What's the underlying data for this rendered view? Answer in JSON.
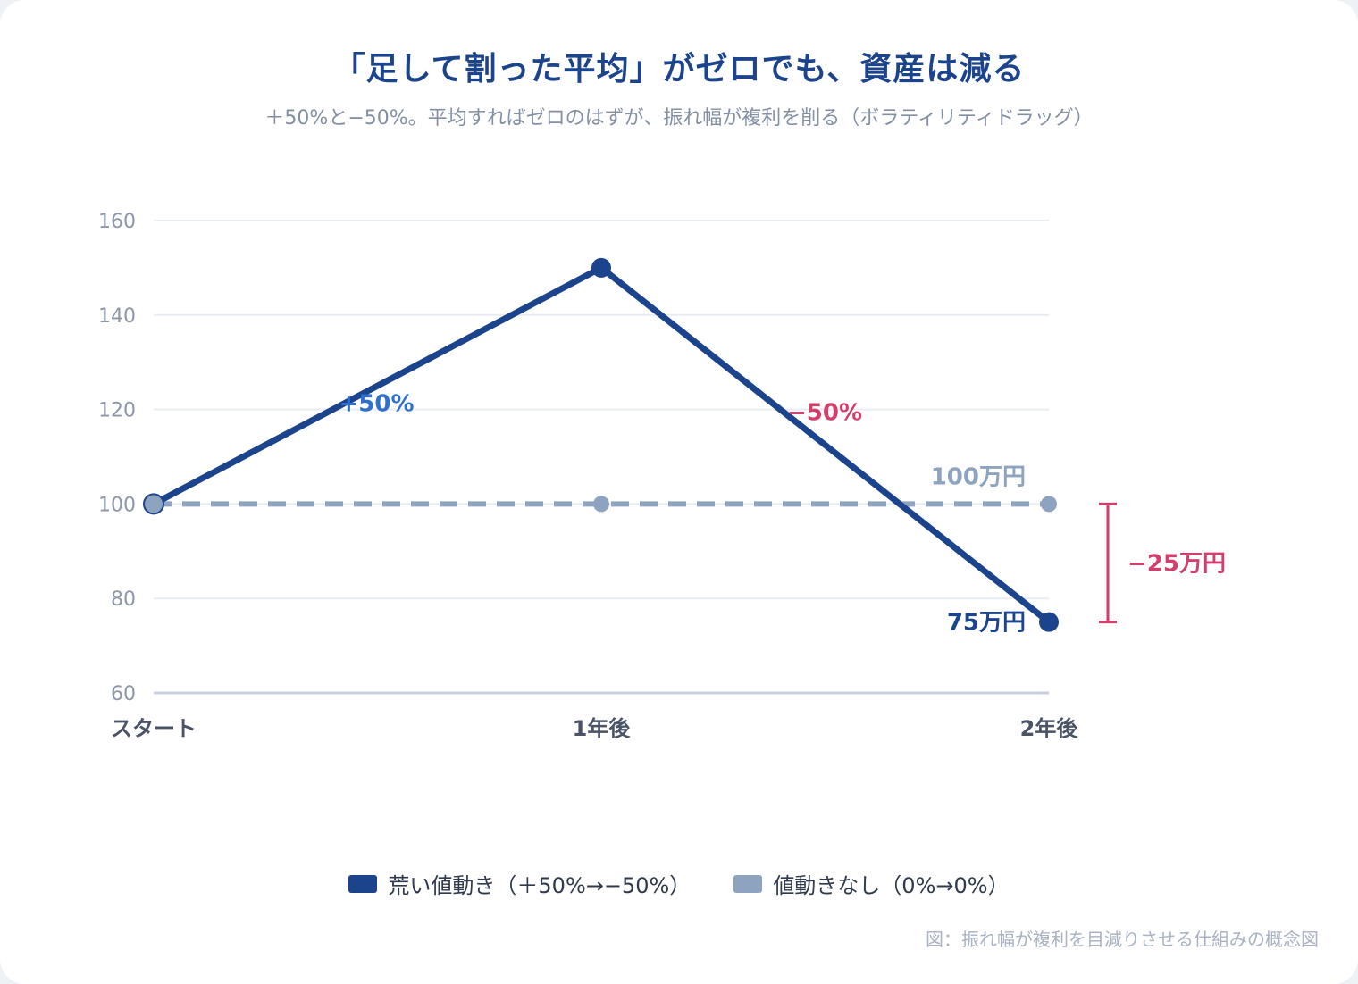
{
  "title": "「足して割った平均」がゼロでも、資産は減る",
  "subtitle": "＋50%と−50%。平均すればゼロのはずが、振れ幅が複利を削る（ボラティリティドラッグ）",
  "caption": "図：振れ幅が複利を目減りさせる仕組みの概念図",
  "colors": {
    "volatile": "#1c448c",
    "flat": "#8ea3c0",
    "up": "#2f6fd0",
    "down": "#d23f6b",
    "grid": "#e8ecf3",
    "axis": "#c9d1e1",
    "tick": "#8d97a8",
    "category": "#4a5466"
  },
  "chart_data": {
    "type": "line",
    "categories": [
      "スタート",
      "1年後",
      "2年後"
    ],
    "ylim": [
      60,
      160
    ],
    "yticks": [
      60,
      80,
      100,
      120,
      140,
      160
    ],
    "series": [
      {
        "name": "荒い値動き（＋50%→−50%）",
        "values": [
          100,
          150,
          75
        ],
        "style": "solid"
      },
      {
        "name": "値動きなし（0%→0%）",
        "values": [
          100,
          100,
          100
        ],
        "style": "dashed"
      }
    ],
    "annotations": {
      "up_label": "+50%",
      "down_label": "−50%",
      "flat_end_label": "100万円",
      "volatile_end_label": "75万円",
      "gap_label": "−25万円"
    }
  }
}
